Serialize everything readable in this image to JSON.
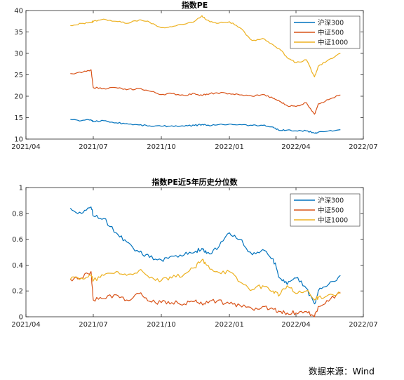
{
  "source": "数据来源：Wind",
  "chart_data": [
    {
      "type": "line",
      "title": "指数PE",
      "xticks": [
        "2021/04",
        "2021/07",
        "2021/10",
        "2022/01",
        "2022/04",
        "2022/07"
      ],
      "xlim": [
        "2021/04",
        "2022/07"
      ],
      "ylim": [
        10,
        40
      ],
      "yticks": [
        10,
        15,
        20,
        25,
        30,
        35,
        40
      ],
      "ytick_labels": [
        "10",
        "15",
        "20",
        "25",
        "30",
        "35",
        "40"
      ],
      "legend": "top-right",
      "grid": false,
      "x": [
        "2021-05-31",
        "2021-06-15",
        "2021-06-28",
        "2021-07-01",
        "2021-07-15",
        "2021-08-01",
        "2021-08-15",
        "2021-09-01",
        "2021-09-15",
        "2021-10-01",
        "2021-10-15",
        "2021-11-01",
        "2021-11-15",
        "2021-11-25",
        "2021-12-01",
        "2021-12-15",
        "2022-01-01",
        "2022-01-15",
        "2022-02-01",
        "2022-02-15",
        "2022-03-01",
        "2022-03-10",
        "2022-03-20",
        "2022-04-01",
        "2022-04-15",
        "2022-04-26",
        "2022-05-01",
        "2022-05-15",
        "2022-05-31"
      ],
      "series": [
        {
          "name": "沪深300",
          "color": "#0072BD",
          "values": [
            14.6,
            14.3,
            14.5,
            14.1,
            14.3,
            13.8,
            13.6,
            13.3,
            13.1,
            13.0,
            13.1,
            13.0,
            13.2,
            13.4,
            13.2,
            13.3,
            13.5,
            13.4,
            13.2,
            13.2,
            12.8,
            12.0,
            12.1,
            11.9,
            11.9,
            11.4,
            11.6,
            11.9,
            12.2
          ]
        },
        {
          "name": "中证500",
          "color": "#D95319",
          "values": [
            25.3,
            25.5,
            26.2,
            22.0,
            21.8,
            22.0,
            21.5,
            21.8,
            21.2,
            20.4,
            20.6,
            20.2,
            20.6,
            20.2,
            20.5,
            20.8,
            20.6,
            20.3,
            20.0,
            20.4,
            19.5,
            18.8,
            17.8,
            17.6,
            18.5,
            15.8,
            18.2,
            19.2,
            20.3
          ]
        },
        {
          "name": "中证1000",
          "color": "#EDB120",
          "values": [
            36.5,
            37.0,
            37.2,
            37.5,
            38.0,
            37.5,
            37.0,
            37.8,
            37.3,
            36.0,
            36.2,
            36.8,
            37.5,
            38.8,
            37.8,
            37.0,
            37.4,
            36.0,
            33.0,
            33.5,
            32.0,
            31.0,
            29.0,
            27.8,
            28.5,
            24.5,
            27.0,
            28.5,
            30.0
          ]
        }
      ]
    },
    {
      "type": "line",
      "title": "指数PE近5年历史分位数",
      "xticks": [
        "2021/04",
        "2021/07",
        "2021/10",
        "2022/01",
        "2022/04",
        "2022/07"
      ],
      "xlim": [
        "2021/04",
        "2022/07"
      ],
      "ylim": [
        0,
        1
      ],
      "yticks": [
        0,
        0.2,
        0.4,
        0.6,
        0.8,
        1
      ],
      "ytick_labels": [
        "0",
        "0.2",
        "0.4",
        "0.6",
        "0.8",
        "1"
      ],
      "legend": "top-right",
      "grid": false,
      "x": [
        "2021-05-31",
        "2021-06-15",
        "2021-06-28",
        "2021-07-01",
        "2021-07-15",
        "2021-08-01",
        "2021-08-15",
        "2021-09-01",
        "2021-09-15",
        "2021-10-01",
        "2021-10-15",
        "2021-11-01",
        "2021-11-15",
        "2021-11-25",
        "2021-12-01",
        "2021-12-15",
        "2022-01-01",
        "2022-01-15",
        "2022-02-01",
        "2022-02-15",
        "2022-03-01",
        "2022-03-10",
        "2022-03-20",
        "2022-04-01",
        "2022-04-15",
        "2022-04-26",
        "2022-05-01",
        "2022-05-15",
        "2022-05-31"
      ],
      "series": [
        {
          "name": "沪深300",
          "color": "#0072BD",
          "values": [
            0.84,
            0.8,
            0.85,
            0.78,
            0.76,
            0.65,
            0.58,
            0.5,
            0.46,
            0.44,
            0.47,
            0.48,
            0.5,
            0.53,
            0.49,
            0.52,
            0.65,
            0.6,
            0.48,
            0.52,
            0.45,
            0.3,
            0.25,
            0.3,
            0.22,
            0.1,
            0.2,
            0.25,
            0.32
          ]
        },
        {
          "name": "中证500",
          "color": "#D95319",
          "values": [
            0.29,
            0.3,
            0.35,
            0.13,
            0.14,
            0.17,
            0.13,
            0.18,
            0.12,
            0.11,
            0.11,
            0.1,
            0.12,
            0.1,
            0.12,
            0.12,
            0.1,
            0.09,
            0.06,
            0.08,
            0.06,
            0.04,
            0.03,
            0.03,
            0.04,
            0.0,
            0.08,
            0.12,
            0.19
          ]
        },
        {
          "name": "中证1000",
          "color": "#EDB120",
          "values": [
            0.29,
            0.3,
            0.32,
            0.28,
            0.32,
            0.35,
            0.32,
            0.36,
            0.3,
            0.28,
            0.3,
            0.33,
            0.38,
            0.44,
            0.4,
            0.35,
            0.35,
            0.27,
            0.21,
            0.24,
            0.2,
            0.17,
            0.24,
            0.18,
            0.2,
            0.13,
            0.15,
            0.17,
            0.18
          ]
        }
      ]
    }
  ]
}
